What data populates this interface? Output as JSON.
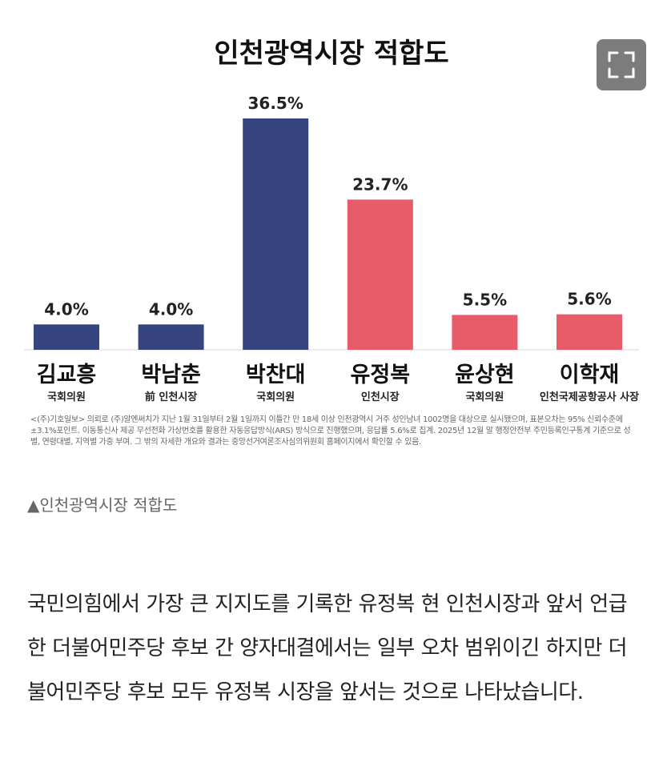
{
  "chart_data": {
    "type": "bar",
    "title": "인천광역시장 적합도",
    "categories": [
      "김교흥",
      "박남춘",
      "박찬대",
      "유정복",
      "윤상현",
      "이학재"
    ],
    "roles": [
      "국회의원",
      "前 인천시장",
      "국회의원",
      "인천시장",
      "국회의원",
      "인천국제공항공사 사장"
    ],
    "values": [
      4.0,
      4.0,
      36.5,
      23.7,
      5.5,
      5.6
    ],
    "value_labels": [
      "4.0%",
      "4.0%",
      "36.5%",
      "23.7%",
      "5.5%",
      "5.6%"
    ],
    "bar_colors": [
      "#36457f",
      "#36457f",
      "#36457f",
      "#e85b68",
      "#e85b68",
      "#e85b68"
    ],
    "ylim": [
      0,
      36.5
    ],
    "grid": false,
    "xlabel": "",
    "ylabel": ""
  },
  "footnote": "<(주)기호일보> 의뢰로 (주)알엔써치가 지난 1월 31일부터 2월 1일까지 이틀간 만 18세 이상 인천광역시 거주 성인남녀 1002명을 대상으로 실시됐으며, 표본오차는 95% 신뢰수준에 ±3.1%포인트. 이동통신사 제공 무선전화 가상번호를 활용한 자동응답방식(ARS) 방식으로 진행했으며, 응답률 5.6%로 집계. 2025년 12월 말 행정안전부 주민등록인구통계 기준으로 성별, 연령대별, 지역별 가중 부여. 그 밖의 자세한 개요와 결과는 중앙선거여론조사심의위원회 홈페이지에서 확인할 수 있음.",
  "caption": "▲인천광역시장 적합도",
  "article": "국민의힘에서 가장 큰 지지도를 기록한 유정복 현 인천시장과 앞서 언급한 더불어민주당 후보 간 양자대결에서는 일부 오차 범위이긴 하지만 더불어민주당 후보 모두 유정복 시장을 앞서는 것으로 나타났습니다.",
  "icons": {
    "expand": "expand-icon"
  }
}
